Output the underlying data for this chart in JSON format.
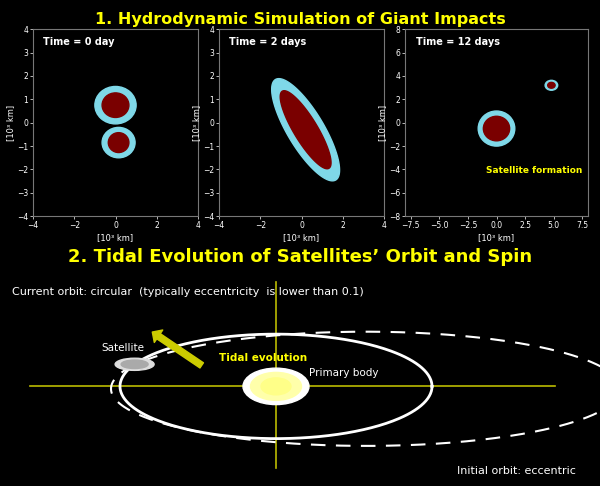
{
  "bg_color": "#000000",
  "title1": "1. Hydrodynamic Simulation of Giant Impacts",
  "title2": "2. Tidal Evolution of Satellites’ Orbit and Spin",
  "title_color": "#ffff00",
  "title_fontsize": 11.5,
  "title2_fontsize": 13,
  "panel_bg": "#000000",
  "panel_border": "#777777",
  "sim_panels": [
    {
      "label": "Time = 0 day",
      "xlim": [
        -4,
        4
      ],
      "ylim": [
        -4,
        4
      ]
    },
    {
      "label": "Time = 2 days",
      "xlim": [
        -4,
        4
      ],
      "ylim": [
        -4,
        4
      ]
    },
    {
      "label": "Time = 12 days",
      "xlim": [
        -8,
        8
      ],
      "ylim": [
        -8,
        8
      ]
    }
  ],
  "dark_red": "#7a0000",
  "cyan_color": "#7fd8e8",
  "white_text": "#ffffff",
  "yellow_text": "#ffff00",
  "axis_label": "[10³ km]",
  "satellite_formation_text": "Satellite formation",
  "current_orbit_text": "Current orbit: circular  (typically eccentricity  is lower than 0.1)",
  "satellite_label": "Satellite",
  "primary_label": "Primary body",
  "tidal_label": "Tidal evolution",
  "initial_orbit_label": "Initial orbit: eccentric"
}
